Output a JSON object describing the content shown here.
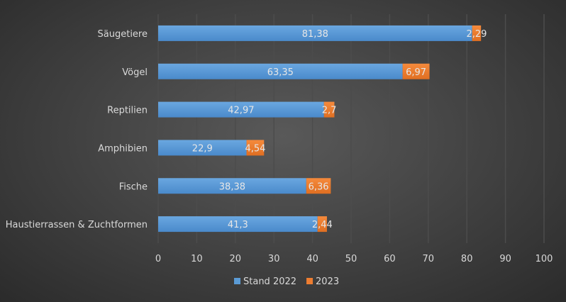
{
  "chart_data": {
    "type": "bar",
    "orientation": "horizontal",
    "stacked": true,
    "categories": [
      "Säugetiere",
      "Vögel",
      "Reptilien",
      "Amphibien",
      "Fische",
      "Haustierrassen & Zuchtformen"
    ],
    "series": [
      {
        "name": "Stand 2022",
        "color": "#5b9bd5",
        "values": [
          81.38,
          63.35,
          42.97,
          22.9,
          38.38,
          41.3
        ],
        "labels": [
          "81,38",
          "63,35",
          "42,97",
          "22,9",
          "38,38",
          "41,3"
        ]
      },
      {
        "name": "2023",
        "color": "#ed7d31",
        "values": [
          2.29,
          6.97,
          2.7,
          4.54,
          6.36,
          2.44
        ],
        "labels": [
          "2,29",
          "6,97",
          "2,7",
          "4,54",
          "6,36",
          "2,44"
        ]
      }
    ],
    "xlim": [
      0,
      100
    ],
    "xticks": [
      "0",
      "10",
      "20",
      "30",
      "40",
      "50",
      "60",
      "70",
      "80",
      "90",
      "100"
    ],
    "grid": true,
    "legend_position": "bottom",
    "title": "",
    "xlabel": "",
    "ylabel": ""
  }
}
